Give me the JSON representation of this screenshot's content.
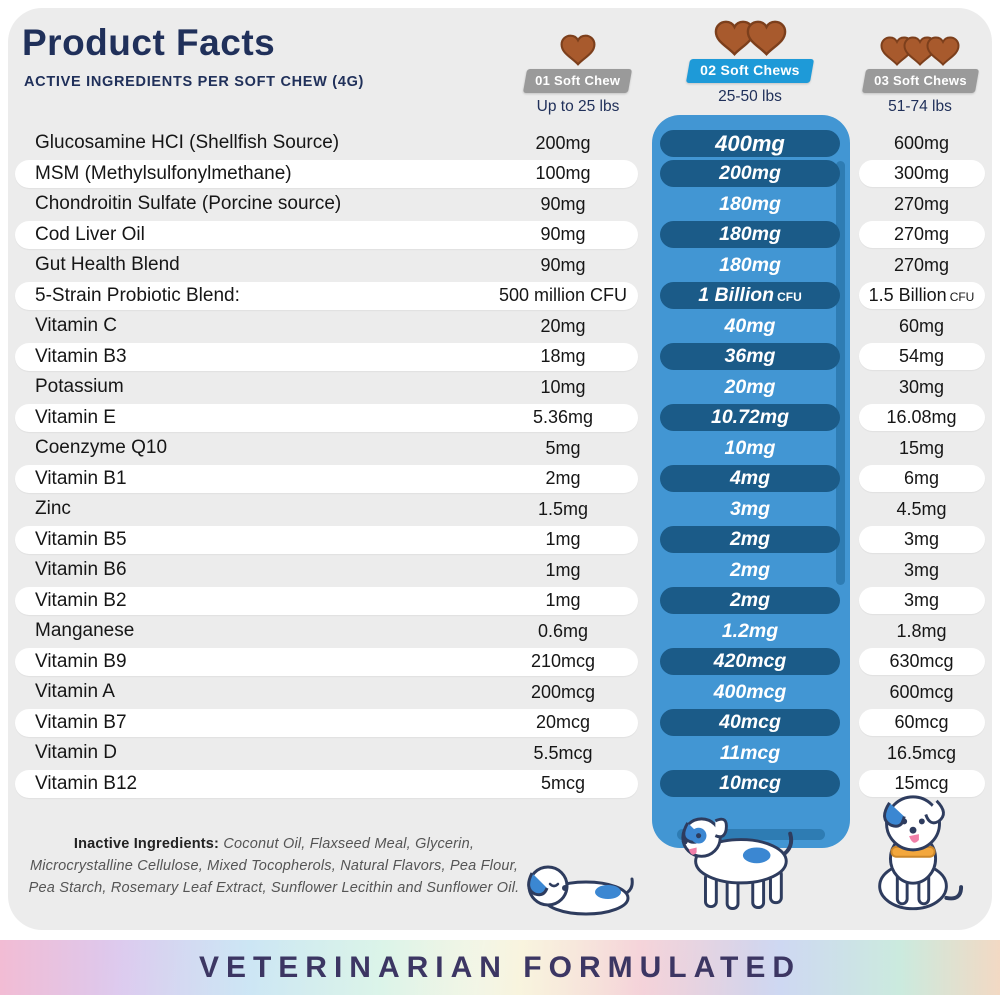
{
  "header": {
    "title": "Product Facts",
    "subtitle": "ACTIVE INGREDIENTS PER SOFT CHEW (4G)"
  },
  "columns": [
    {
      "badge": "01 Soft Chew",
      "weight": "Up to 25 lbs",
      "chews": 1,
      "highlight": false
    },
    {
      "badge": "02 Soft Chews",
      "weight": "25-50 lbs",
      "chews": 2,
      "highlight": true
    },
    {
      "badge": "03 Soft Chews",
      "weight": "51-74 lbs",
      "chews": 3,
      "highlight": false
    }
  ],
  "rows": [
    {
      "name": "Glucosamine HCI (Shellfish Source)",
      "v1": "200mg",
      "v2": "400mg",
      "v3": "600mg"
    },
    {
      "name": "MSM (Methylsulfonylmethane)",
      "v1": "100mg",
      "v2": "200mg",
      "v3": "300mg"
    },
    {
      "name": "Chondroitin Sulfate (Porcine source)",
      "v1": "90mg",
      "v2": "180mg",
      "v3": "270mg"
    },
    {
      "name": "Cod Liver Oil",
      "v1": "90mg",
      "v2": "180mg",
      "v3": "270mg"
    },
    {
      "name": "Gut Health Blend",
      "v1": "90mg",
      "v2": "180mg",
      "v3": "270mg"
    },
    {
      "name": "5-Strain Probiotic Blend:",
      "v1": "500 million CFU",
      "v2": "1 Billion CFU",
      "v3": "1.5 Billion CFU"
    },
    {
      "name": "Vitamin C",
      "v1": "20mg",
      "v2": "40mg",
      "v3": "60mg"
    },
    {
      "name": "Vitamin B3",
      "v1": "18mg",
      "v2": "36mg",
      "v3": "54mg"
    },
    {
      "name": "Potassium",
      "v1": "10mg",
      "v2": "20mg",
      "v3": "30mg"
    },
    {
      "name": "Vitamin E",
      "v1": "5.36mg",
      "v2": "10.72mg",
      "v3": "16.08mg"
    },
    {
      "name": "Coenzyme Q10",
      "v1": "5mg",
      "v2": "10mg",
      "v3": "15mg"
    },
    {
      "name": "Vitamin B1",
      "v1": "2mg",
      "v2": "4mg",
      "v3": "6mg"
    },
    {
      "name": "Zinc",
      "v1": "1.5mg",
      "v2": "3mg",
      "v3": "4.5mg"
    },
    {
      "name": "Vitamin B5",
      "v1": "1mg",
      "v2": "2mg",
      "v3": "3mg"
    },
    {
      "name": "Vitamin B6",
      "v1": "1mg",
      "v2": "2mg",
      "v3": "3mg"
    },
    {
      "name": "Vitamin B2",
      "v1": "1mg",
      "v2": "2mg",
      "v3": "3mg"
    },
    {
      "name": "Manganese",
      "v1": "0.6mg",
      "v2": "1.2mg",
      "v3": "1.8mg"
    },
    {
      "name": "Vitamin B9",
      "v1": "210mcg",
      "v2": "420mcg",
      "v3": "630mcg"
    },
    {
      "name": "Vitamin A",
      "v1": "200mcg",
      "v2": "400mcg",
      "v3": "600mcg"
    },
    {
      "name": "Vitamin B7",
      "v1": "20mcg",
      "v2": "40mcg",
      "v3": "60mcg"
    },
    {
      "name": "Vitamin D",
      "v1": "5.5mcg",
      "v2": "11mcg",
      "v3": "16.5mcg"
    },
    {
      "name": "Vitamin B12",
      "v1": "5mcg",
      "v2": "10mcg",
      "v3": "15mcg"
    }
  ],
  "inactive": {
    "label": "Inactive Ingredients:",
    "text": "Coconut Oil, Flaxseed Meal, Glycerin, Microcrystalline Cellulose, Mixed Tocopherols, Natural Flavors, Pea Flour, Pea Starch, Rosemary Leaf Extract, Sunflower Lecithin and Sunflower Oil."
  },
  "footer": {
    "text": "VETERINARIAN FORMULATED"
  },
  "colors": {
    "card_bg": "#ececec",
    "navy": "#20305a",
    "ink": "#161616",
    "band": "#4296d3",
    "band_dark": "#1b5b88",
    "band_edge": "#2e7cb3",
    "badge_gray": "#9a9a9a",
    "badge_blue": "#1e9ad8",
    "heart": "#a85a2d",
    "heart_outline": "#7c3f1c",
    "footer_text": "#3c3663"
  }
}
